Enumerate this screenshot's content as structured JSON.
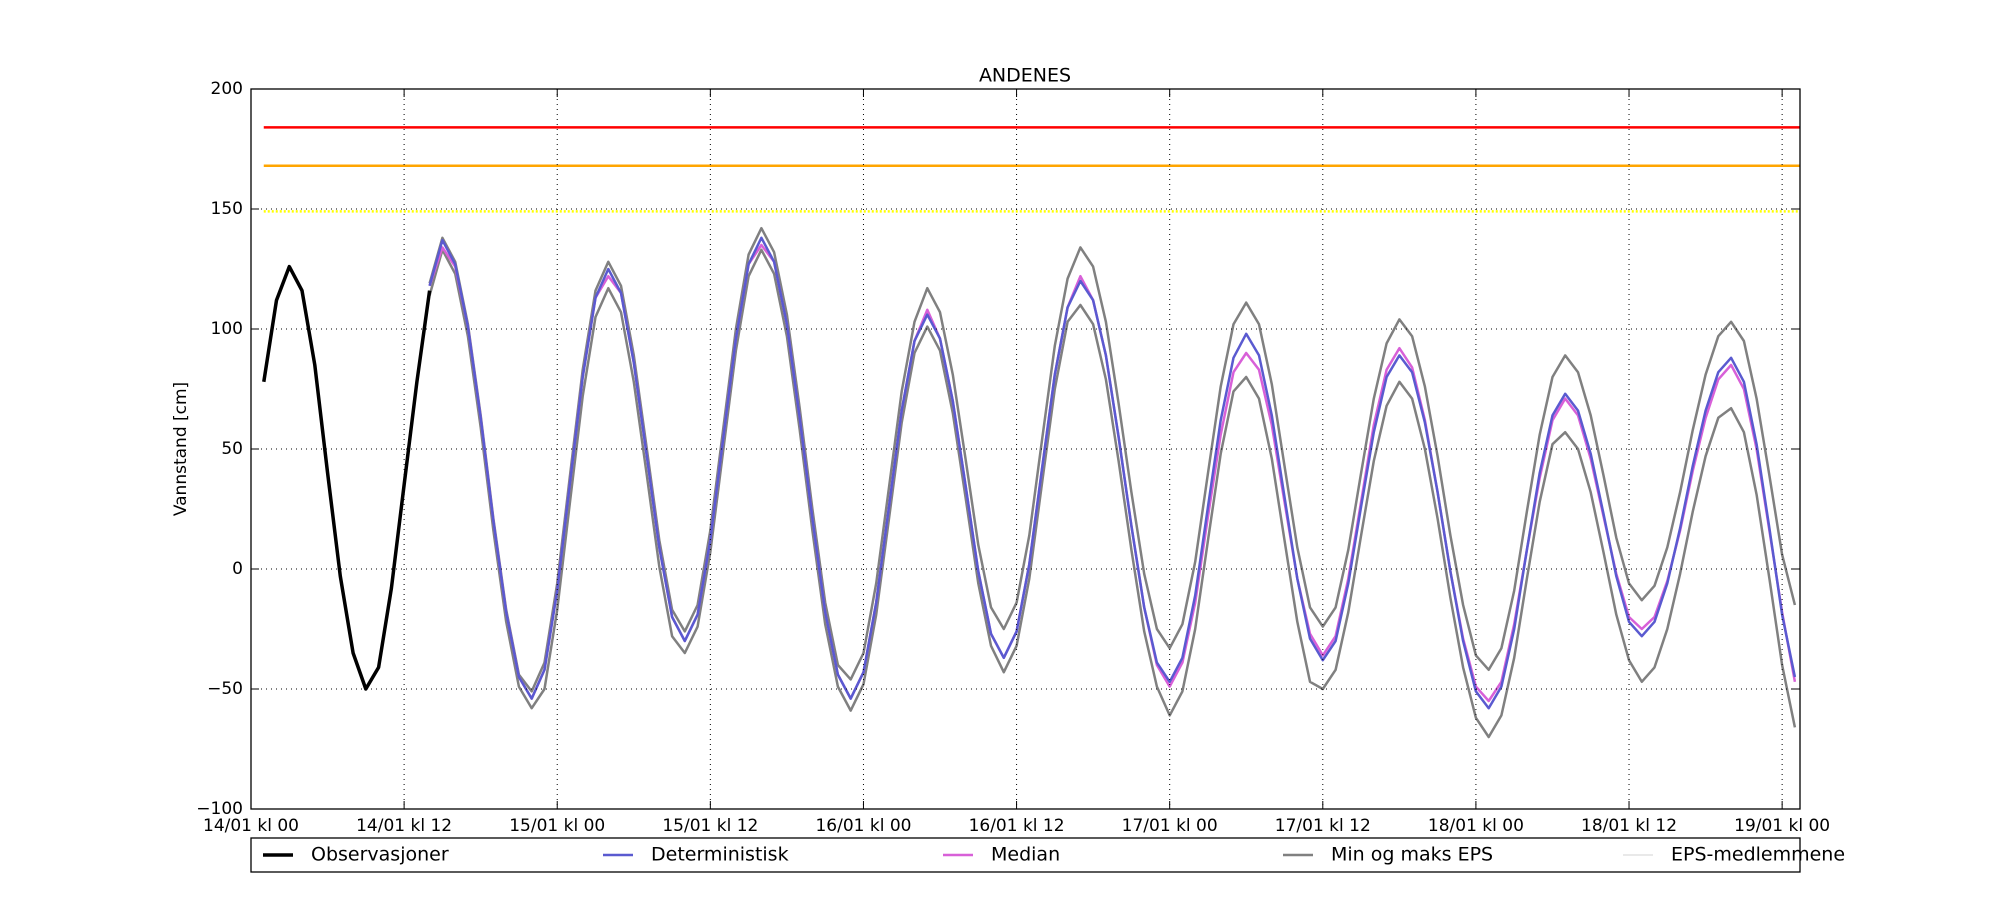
{
  "chart_data": {
    "type": "line",
    "title": "ANDENES",
    "y_label": "Vannstand [cm]",
    "xlim": [
      0,
      121.4
    ],
    "ylim": [
      -100,
      200
    ],
    "grid": true,
    "xticks": [
      {
        "value": 0,
        "label": "14/01 kl 00"
      },
      {
        "value": 12,
        "label": "14/01 kl 12"
      },
      {
        "value": 24,
        "label": "15/01 kl 00"
      },
      {
        "value": 36,
        "label": "15/01 kl 12"
      },
      {
        "value": 48,
        "label": "16/01 kl 00"
      },
      {
        "value": 60,
        "label": "16/01 kl 12"
      },
      {
        "value": 72,
        "label": "17/01 kl 00"
      },
      {
        "value": 84,
        "label": "17/01 kl 12"
      },
      {
        "value": 96,
        "label": "18/01 kl 00"
      },
      {
        "value": 108,
        "label": "18/01 kl 12"
      },
      {
        "value": 120,
        "label": "19/01 kl 00"
      }
    ],
    "yticks": [
      {
        "value": -100,
        "label": "−100"
      },
      {
        "value": -50,
        "label": "−50"
      },
      0,
      50,
      100,
      150,
      200
    ],
    "thresholds": [
      {
        "value": 184,
        "color": "#ff0000",
        "style": "solid"
      },
      {
        "value": 168,
        "color": "#ffa500",
        "style": "solid"
      },
      {
        "value": 149,
        "color": "#ffff00",
        "style": "dotted"
      }
    ],
    "x": [
      14,
      15,
      16,
      17,
      18,
      19,
      20,
      21,
      22,
      23,
      24,
      25,
      26,
      27,
      28,
      29,
      30,
      31,
      32,
      33,
      34,
      35,
      36,
      37,
      38,
      39,
      40,
      41,
      42,
      43,
      44,
      45,
      46,
      47,
      48,
      49,
      50,
      51,
      52,
      53,
      54,
      55,
      56,
      57,
      58,
      59,
      60,
      61,
      62,
      63,
      64,
      65,
      66,
      67,
      68,
      69,
      70,
      71,
      72,
      73,
      74,
      75,
      76,
      77,
      78,
      79,
      80,
      81,
      82,
      83,
      84,
      85,
      86,
      87,
      88,
      89,
      90,
      91,
      92,
      93,
      94,
      95,
      96,
      97,
      98,
      99,
      100,
      101,
      102,
      103,
      104,
      105,
      106,
      107,
      108,
      109,
      110,
      111,
      112,
      113,
      114,
      115,
      116,
      117,
      118,
      119,
      120,
      121
    ],
    "series": [
      {
        "name": "Observasjoner",
        "color": "#000000",
        "width": 3.5,
        "x": [
          1,
          2,
          3,
          4,
          5,
          6,
          7,
          8,
          9,
          10,
          11,
          12,
          13,
          14
        ],
        "values": [
          78,
          112,
          126,
          116,
          85,
          40,
          -3,
          -35,
          -50,
          -41,
          -8,
          35,
          78,
          116
        ]
      },
      {
        "name": "Deterministisk",
        "color": "#5a5ad0",
        "width": 2.5,
        "values": [
          118,
          137,
          127,
          101,
          63,
          20,
          -18,
          -45,
          -54,
          -42,
          -9,
          36,
          80,
          113,
          125,
          115,
          86,
          48,
          9,
          -20,
          -30,
          -19,
          12,
          54,
          96,
          127,
          138,
          128,
          102,
          63,
          21,
          -18,
          -44,
          -54,
          -43,
          -14,
          26,
          66,
          95,
          106,
          96,
          70,
          35,
          -1,
          -27,
          -37,
          -26,
          2,
          42,
          81,
          109,
          120,
          112,
          89,
          55,
          18,
          -16,
          -39,
          -47,
          -37,
          -11,
          26,
          62,
          88,
          98,
          89,
          64,
          30,
          -4,
          -29,
          -38,
          -30,
          -6,
          26,
          57,
          80,
          89,
          82,
          61,
          32,
          -1,
          -30,
          -51,
          -58,
          -49,
          -25,
          8,
          40,
          64,
          73,
          66,
          48,
          23,
          -3,
          -22,
          -28,
          -22,
          -6,
          17,
          43,
          66,
          82,
          88,
          78,
          52,
          17,
          -19,
          -45
        ]
      },
      {
        "name": "Median",
        "color": "#d860d8",
        "width": 2.5,
        "values": [
          118,
          134,
          126,
          101,
          63,
          20,
          -18,
          -45,
          -54,
          -42,
          -9,
          36,
          80,
          113,
          122,
          115,
          86,
          48,
          9,
          -20,
          -30,
          -19,
          12,
          54,
          96,
          127,
          135,
          128,
          102,
          63,
          21,
          -18,
          -44,
          -54,
          -43,
          -14,
          26,
          66,
          95,
          108,
          96,
          70,
          35,
          -1,
          -27,
          -37,
          -26,
          2,
          42,
          81,
          109,
          122,
          112,
          89,
          55,
          18,
          -16,
          -40,
          -49,
          -39,
          -14,
          22,
          56,
          82,
          90,
          83,
          60,
          28,
          -4,
          -27,
          -36,
          -28,
          -4,
          28,
          60,
          83,
          92,
          84,
          62,
          32,
          -1,
          -29,
          -49,
          -55,
          -47,
          -23,
          8,
          38,
          62,
          71,
          64,
          46,
          22,
          -2,
          -20,
          -25,
          -20,
          -5,
          16,
          41,
          63,
          79,
          85,
          75,
          50,
          16,
          -18,
          -47
        ]
      },
      {
        "name": "Min og maks EPS",
        "color": "#808080",
        "width": 2.5,
        "max": [
          119,
          138,
          128,
          102,
          64,
          21,
          -17,
          -44,
          -51,
          -39,
          -6,
          39,
          83,
          116,
          128,
          118,
          89,
          51,
          12,
          -17,
          -26,
          -15,
          16,
          58,
          100,
          131,
          142,
          132,
          106,
          67,
          25,
          -14,
          -40,
          -46,
          -35,
          -6,
          34,
          74,
          103,
          117,
          107,
          81,
          46,
          10,
          -16,
          -25,
          -14,
          14,
          54,
          93,
          121,
          134,
          126,
          103,
          69,
          32,
          -2,
          -25,
          -33,
          -23,
          3,
          40,
          76,
          102,
          111,
          102,
          77,
          43,
          9,
          -16,
          -24,
          -16,
          8,
          40,
          71,
          94,
          104,
          97,
          76,
          47,
          14,
          -15,
          -36,
          -42,
          -33,
          -9,
          24,
          56,
          80,
          89,
          82,
          64,
          39,
          13,
          -6,
          -13,
          -7,
          9,
          32,
          58,
          81,
          97,
          103,
          95,
          71,
          39,
          6,
          -15
        ],
        "min": [
          114,
          133,
          123,
          97,
          59,
          16,
          -22,
          -49,
          -58,
          -50,
          -17,
          28,
          72,
          105,
          117,
          107,
          78,
          40,
          1,
          -28,
          -35,
          -24,
          7,
          49,
          91,
          122,
          133,
          123,
          97,
          58,
          16,
          -23,
          -49,
          -59,
          -48,
          -19,
          21,
          61,
          90,
          101,
          91,
          65,
          30,
          -6,
          -32,
          -43,
          -32,
          -4,
          36,
          75,
          103,
          110,
          102,
          79,
          45,
          8,
          -26,
          -49,
          -61,
          -51,
          -25,
          12,
          48,
          74,
          80,
          71,
          46,
          12,
          -22,
          -47,
          -50,
          -42,
          -18,
          14,
          45,
          68,
          78,
          71,
          50,
          21,
          -12,
          -41,
          -62,
          -70,
          -61,
          -37,
          -4,
          28,
          52,
          57,
          50,
          32,
          7,
          -19,
          -38,
          -47,
          -41,
          -25,
          -2,
          24,
          47,
          63,
          67,
          57,
          31,
          -4,
          -40,
          -66
        ]
      },
      {
        "name": "EPS-medlemmene",
        "color": "#d3d3d3",
        "width": 1
      }
    ]
  }
}
